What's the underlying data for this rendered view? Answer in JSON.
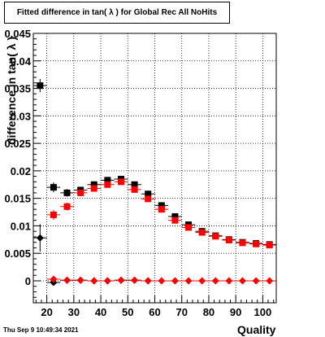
{
  "title": "Fitted difference in tan( λ ) for Global Rec All NoHits",
  "footer": "Thu Sep  9 10:49:34 2021",
  "chart_data": {
    "type": "scatter",
    "title": "Fitted difference in tan( λ ) for Global Rec All NoHits",
    "xlabel": "Quality",
    "ylabel": "difference in tan( λ )",
    "xlim": [
      15,
      105
    ],
    "ylim": [
      -0.004,
      0.045
    ],
    "grid": true,
    "x_ticks": [
      20,
      30,
      40,
      50,
      60,
      70,
      80,
      90,
      100
    ],
    "y_ticks": [
      {
        "value": 0,
        "label": "0"
      },
      {
        "value": 0.005,
        "label": "0.005"
      },
      {
        "value": 0.01,
        "label": "0.01"
      },
      {
        "value": 0.015,
        "label": "0.015"
      },
      {
        "value": 0.02,
        "label": "0.02"
      },
      {
        "value": 0.025,
        "label": "0.025"
      },
      {
        "value": 0.03,
        "label": "0.03"
      },
      {
        "value": 0.035,
        "label": "0.035"
      },
      {
        "value": 0.04,
        "label": "0.04"
      },
      {
        "value": 0.045,
        "label": "0.045"
      }
    ],
    "series": [
      {
        "marker": "square",
        "color": "#000000",
        "x": [
          17.5,
          22.5,
          27.5,
          32.5,
          37.5,
          42.5,
          47.5,
          52.5,
          57.5,
          62.5,
          67.5,
          72.5,
          77.5,
          82.5,
          87.5,
          92.5,
          97.5,
          102.5
        ],
        "y": [
          0.0355,
          0.017,
          0.016,
          0.0165,
          0.0175,
          0.0183,
          0.0185,
          0.0175,
          0.0158,
          0.0137,
          0.0117,
          0.0102,
          0.009,
          0.0082,
          0.0075,
          0.007,
          0.0068,
          0.0066
        ],
        "yerr": [
          0.0012,
          0.0009,
          0.0007,
          0.0006,
          0.0006,
          0.0005,
          0.0005,
          0.0005,
          0.0005,
          0.0005,
          0.0004,
          0.0004,
          0.0004,
          0.0004,
          0.0004,
          0.0003,
          0.0003,
          0.0003
        ]
      },
      {
        "marker": "square",
        "color": "#ff0000",
        "x": [
          22.5,
          27.5,
          32.5,
          37.5,
          42.5,
          47.5,
          52.5,
          57.5,
          62.5,
          67.5,
          72.5,
          77.5,
          82.5,
          87.5,
          92.5,
          97.5,
          102.5
        ],
        "y": [
          0.012,
          0.0135,
          0.016,
          0.0168,
          0.0175,
          0.018,
          0.0166,
          0.0149,
          0.013,
          0.011,
          0.0097,
          0.0088,
          0.0081,
          0.0074,
          0.0069,
          0.0067,
          0.0065
        ],
        "yerr": [
          0.0009,
          0.0007,
          0.0006,
          0.0006,
          0.0005,
          0.0005,
          0.0005,
          0.0005,
          0.0005,
          0.0004,
          0.0004,
          0.0004,
          0.0004,
          0.0004,
          0.0003,
          0.0003,
          0.0003
        ]
      },
      {
        "marker": "diamond",
        "color": "#000000",
        "x": [
          17.5,
          22.5,
          27.5,
          32.5,
          37.5,
          42.5,
          47.5,
          52.5,
          57.5
        ],
        "y": [
          0.0078,
          -0.0003,
          0.0001,
          0.0001,
          0.0,
          0.0,
          0.0001,
          0.0001,
          0.0
        ],
        "yerr": [
          0.0025,
          0.0003,
          0.0002,
          0.0002,
          0.0001,
          0.0001,
          0.0001,
          0.0001,
          0.0001
        ]
      },
      {
        "marker": "diamond",
        "color": "#ff0000",
        "x": [
          22.5,
          27.5,
          32.5,
          37.5,
          42.5,
          47.5,
          52.5,
          57.5,
          62.5,
          67.5,
          72.5,
          77.5,
          82.5,
          87.5,
          92.5,
          97.5,
          102.5
        ],
        "y": [
          0.0003,
          0.0001,
          0.0001,
          0.0,
          0.0,
          0.0001,
          0.0001,
          0.0,
          0.0,
          0.0,
          0.0,
          0.0,
          0.0,
          0.0,
          0.0,
          0.0,
          0.0
        ],
        "yerr": [
          0.0003,
          0.0002,
          0.0002,
          0.0001,
          0.0001,
          0.0001,
          0.0001,
          0.0001,
          0.0001,
          0.0001,
          0.0001,
          0.0001,
          0.0001,
          0.0001,
          0.0001,
          0.0001,
          0.0001
        ]
      }
    ]
  }
}
